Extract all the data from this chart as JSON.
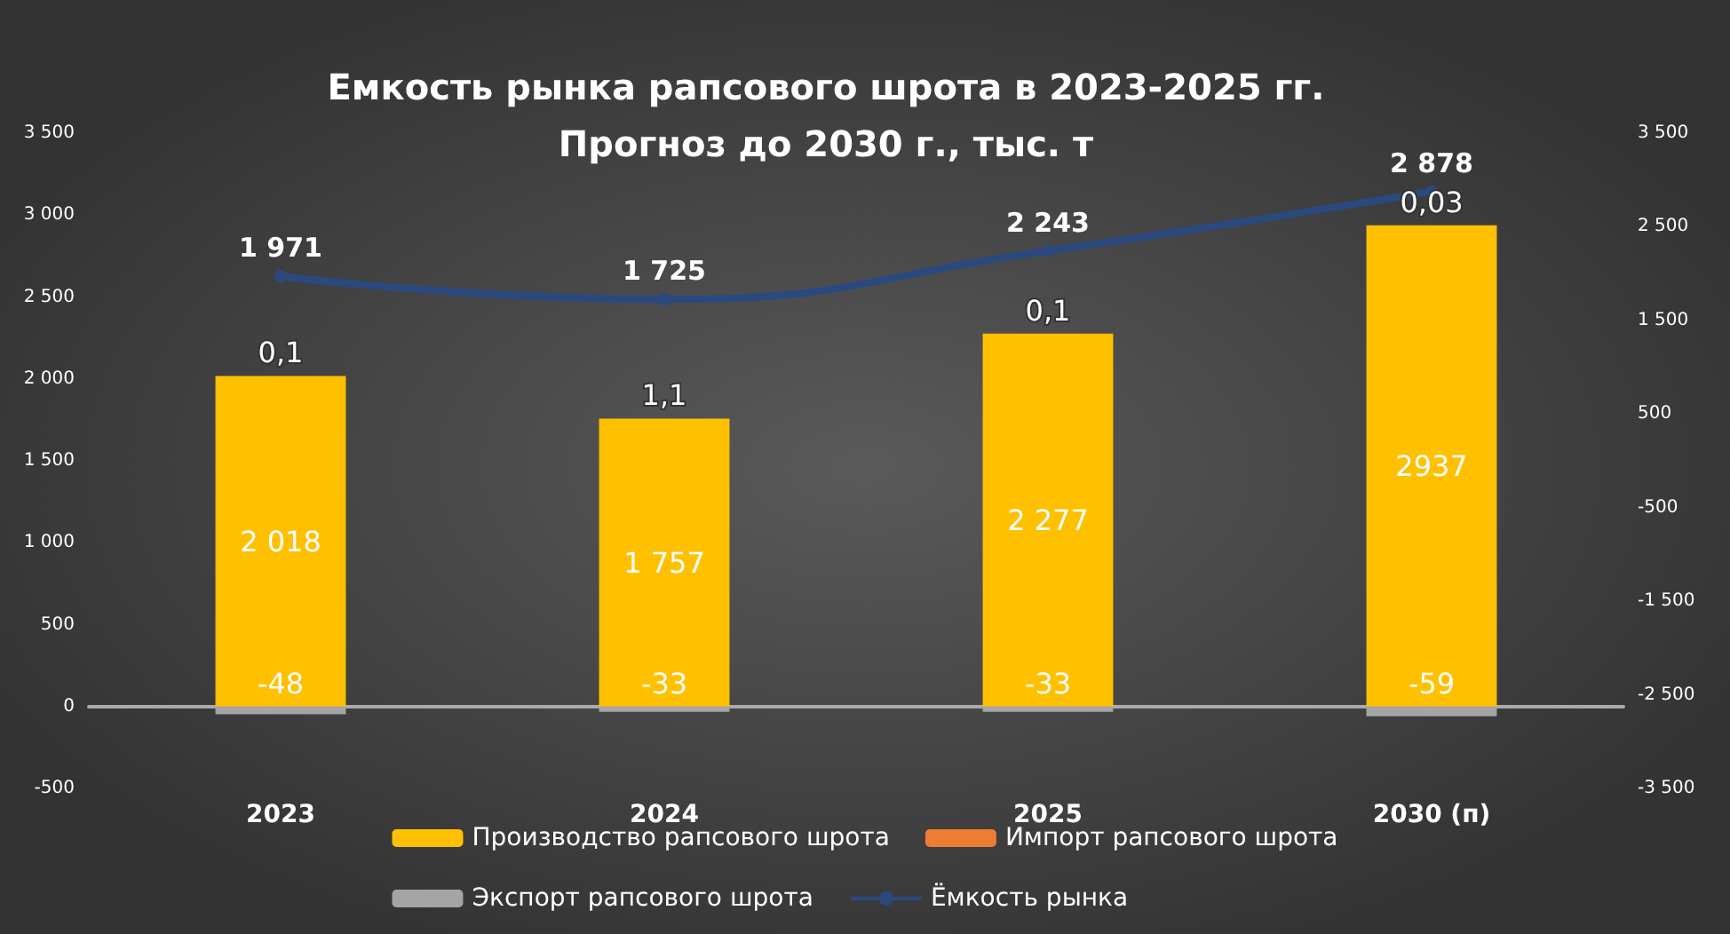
{
  "chart_data": {
    "type": "bar",
    "title": "Емкость рынка рапсового шрота в 2023-2025 гг.\nПрогноз до 2030 г., тыс. т",
    "categories": [
      "2023",
      "2024",
      "2025",
      "2030 (п)"
    ],
    "stacked": true,
    "series": [
      {
        "name": "Производство рапсового шрота",
        "color": "#ffc000",
        "values": [
          2018,
          1757,
          2277,
          2937
        ],
        "value_labels": [
          "2 018",
          "1 757",
          "2 277",
          "2937"
        ]
      },
      {
        "name": "Импорт рапсового шрота",
        "color": "#ed7d31",
        "values": [
          0.1,
          1.1,
          0.1,
          0.03
        ],
        "value_labels": [
          "0,1",
          "1,1",
          "0,1",
          "0,03"
        ]
      },
      {
        "name": "Экспорт рапсового шрота",
        "color": "#a5a5a5",
        "values": [
          -48,
          -33,
          -33,
          -59
        ],
        "value_labels": [
          "-48",
          "-33",
          "-33",
          "-59"
        ]
      },
      {
        "name": "Ёмкость рынка",
        "type": "line",
        "axis": "y2",
        "color": "#2a4a7f",
        "values": [
          1971,
          1725,
          2243,
          2878
        ],
        "value_labels": [
          "1 971",
          "1 725",
          "2 243",
          "2 878"
        ]
      }
    ],
    "ylim": [
      -500,
      3500
    ],
    "yticks": [
      {
        "value": -500,
        "label": "-500"
      },
      {
        "value": 0,
        "label": "0"
      },
      {
        "value": 500,
        "label": "500"
      },
      {
        "value": 1000,
        "label": "1 000"
      },
      {
        "value": 1500,
        "label": "1 500"
      },
      {
        "value": 2000,
        "label": "2 000"
      },
      {
        "value": 2500,
        "label": "2 500"
      },
      {
        "value": 3000,
        "label": "3 000"
      },
      {
        "value": 3500,
        "label": "3 500"
      }
    ],
    "y2lim": [
      -3500,
      3500
    ],
    "y2ticks": [
      {
        "value": -3500,
        "label": "-3 500"
      },
      {
        "value": -2500,
        "label": "-2 500"
      },
      {
        "value": -1500,
        "label": "-1 500"
      },
      {
        "value": -500,
        "label": "-500"
      },
      {
        "value": 500,
        "label": "500"
      },
      {
        "value": 1500,
        "label": "1 500"
      },
      {
        "value": 2500,
        "label": "2 500"
      },
      {
        "value": 3500,
        "label": "3 500"
      }
    ],
    "legend": "bottom",
    "marker": "circle"
  }
}
